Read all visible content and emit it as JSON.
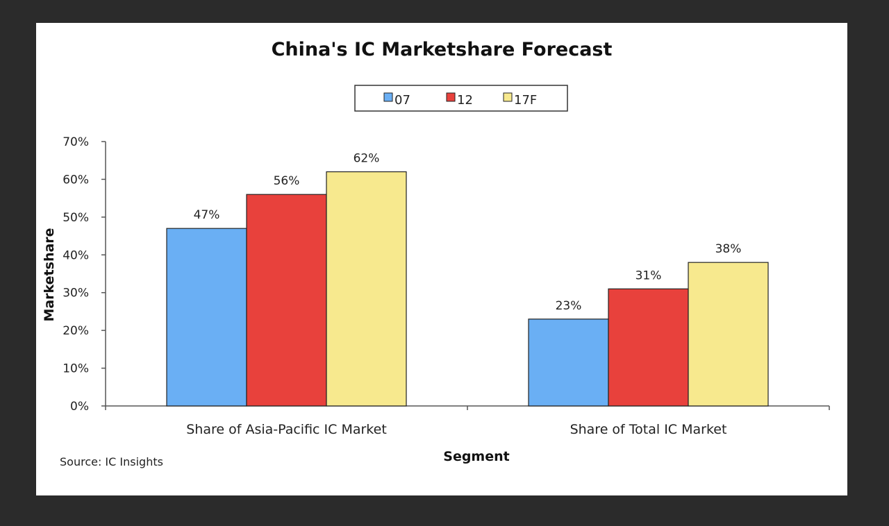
{
  "chart_data": {
    "type": "bar",
    "title": "China's IC Marketshare Forecast",
    "xlabel": "Segment",
    "ylabel": "Marketshare",
    "categories": [
      "Share of Asia-Pacific IC Market",
      "Share of Total IC Market"
    ],
    "series": [
      {
        "name": "07",
        "values": [
          47,
          23
        ],
        "color": "#6aaff4"
      },
      {
        "name": "12",
        "values": [
          56,
          31
        ],
        "color": "#e8413c"
      },
      {
        "name": "17F",
        "values": [
          62,
          38
        ],
        "color": "#f7e98e"
      }
    ],
    "value_format": "percent",
    "ylim": [
      0,
      70
    ],
    "yticks": [
      0,
      10,
      20,
      30,
      40,
      50,
      60,
      70
    ],
    "ytick_labels": [
      "0%",
      "10%",
      "20%",
      "30%",
      "40%",
      "50%",
      "60%",
      "70%"
    ],
    "grid": false,
    "legend_position": "top",
    "source": "Source: IC Insights"
  }
}
